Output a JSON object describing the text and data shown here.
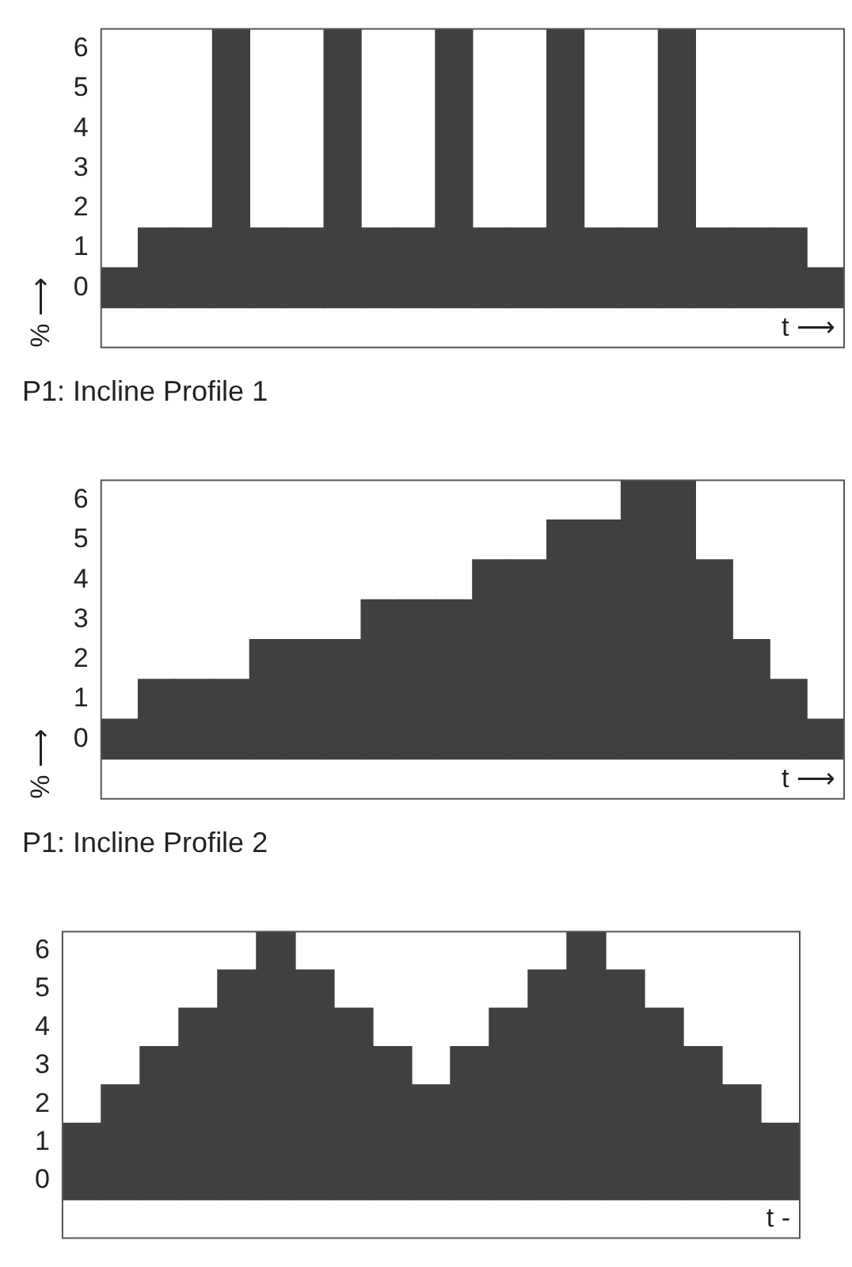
{
  "chart_data": [
    {
      "type": "bar",
      "title": "P1: Incline Profile 1",
      "xlabel": "t ⟶",
      "ylabel": "% ⟶",
      "categories": [
        null,
        null,
        null,
        null,
        null,
        null,
        null,
        null,
        null,
        null,
        null,
        null,
        null,
        null,
        null,
        null,
        null,
        null,
        null,
        null
      ],
      "values": [
        1,
        2,
        2,
        7,
        2,
        2,
        7,
        2,
        2,
        7,
        2,
        2,
        7,
        2,
        2,
        7,
        2,
        2,
        2,
        1
      ],
      "base": [
        -0.5,
        -0.5,
        -0.5,
        -0.5,
        -0.5,
        -0.5,
        -0.5,
        -0.5,
        -0.5,
        -0.5,
        -0.5,
        -0.5,
        -0.5,
        -0.5,
        -0.5,
        -0.5,
        -0.5,
        -0.5,
        -0.5,
        -0.5
      ],
      "color": "#404040",
      "ylim": [
        -1.5,
        6.5
      ],
      "yticks": [
        0,
        1,
        2,
        3,
        4,
        5,
        6
      ],
      "tick_labels": "y"
    },
    {
      "type": "bar",
      "title": "P1: Incline Profile 2",
      "xlabel": "t ⟶",
      "ylabel": "% ⟶",
      "categories": [
        null,
        null,
        null,
        null,
        null,
        null,
        null,
        null,
        null,
        null,
        null,
        null,
        null,
        null,
        null,
        null,
        null,
        null,
        null,
        null
      ],
      "values": [
        1,
        2,
        2,
        2,
        3,
        3,
        3,
        4,
        4,
        4,
        5,
        5,
        6,
        6,
        7,
        7,
        5,
        3,
        2,
        1
      ],
      "base": [
        -0.5,
        -0.5,
        -0.5,
        -0.5,
        -0.5,
        -0.5,
        -0.5,
        -0.5,
        -0.5,
        -0.5,
        -0.5,
        -0.5,
        -0.5,
        -0.5,
        -0.5,
        -0.5,
        -0.5,
        -0.5,
        -0.5,
        -0.5
      ],
      "color": "#404040",
      "ylim": [
        -1.5,
        6.5
      ],
      "yticks": [
        0,
        1,
        2,
        3,
        4,
        5,
        6
      ],
      "tick_labels": "y"
    },
    {
      "type": "bar",
      "xlabel": "t -",
      "categories": [
        null,
        null,
        null,
        null,
        null,
        null,
        null,
        null,
        null,
        null,
        null,
        null,
        null,
        null,
        null,
        null,
        null,
        null,
        null
      ],
      "values": [
        2,
        3,
        4,
        5,
        6,
        7,
        6,
        5,
        4,
        3,
        4,
        5,
        6,
        7,
        6,
        5,
        4,
        3,
        2
      ],
      "base": [
        -0.5,
        -0.5,
        -0.5,
        -0.5,
        -0.5,
        -0.5,
        -0.5,
        -0.5,
        -0.5,
        -0.5,
        -0.5,
        -0.5,
        -0.5,
        -0.5,
        -0.5,
        -0.5,
        -0.5,
        -0.5,
        -0.5
      ],
      "color": "#404040",
      "ylim": [
        -1.5,
        6.5
      ],
      "yticks": [
        0,
        1,
        2,
        3,
        4,
        5,
        6
      ],
      "tick_labels": "y"
    }
  ]
}
